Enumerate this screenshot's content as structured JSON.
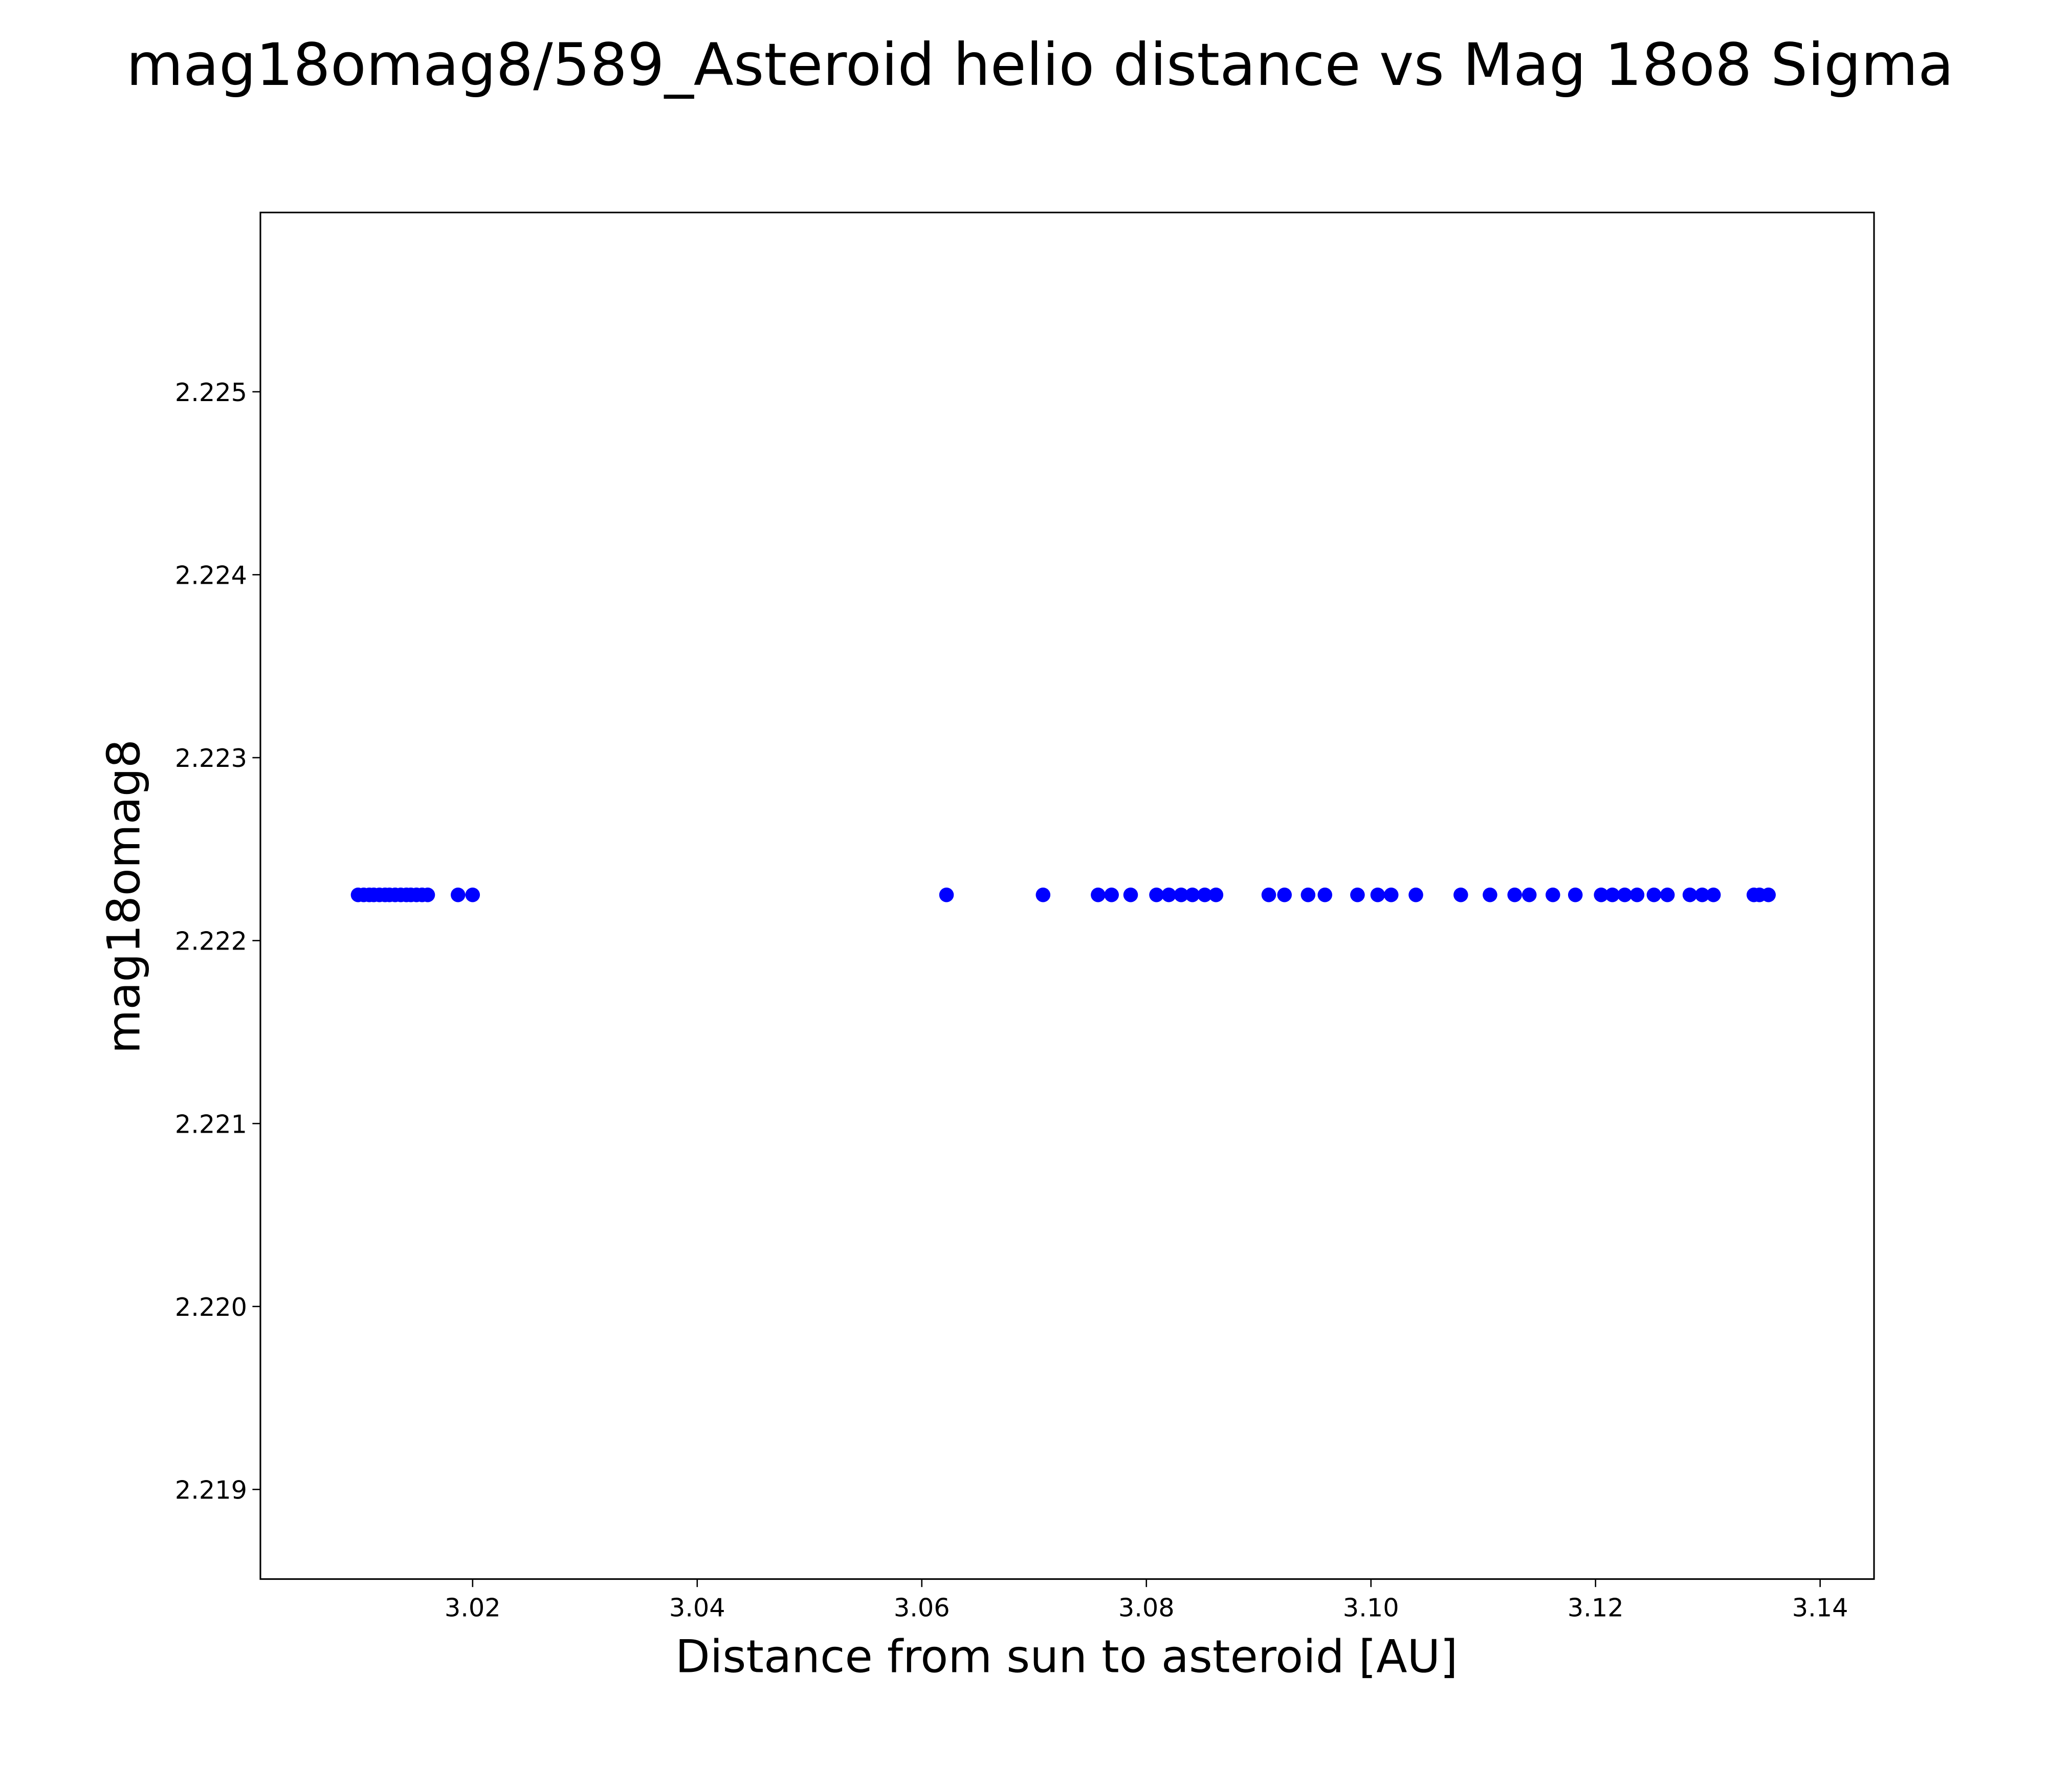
{
  "chart_data": {
    "type": "scatter",
    "title": "mag18omag8/589_Asteroid helio distance vs Mag 18o8 Sigma",
    "xlabel": "Distance from sun to asteroid [AU]",
    "ylabel": "mag18omag8",
    "xlim": [
      3.0011,
      3.1448
    ],
    "ylim": [
      2.21851,
      2.22598
    ],
    "xticks": [
      "3.02",
      "3.04",
      "3.06",
      "3.08",
      "3.10",
      "3.12",
      "3.14"
    ],
    "xtick_values": [
      3.02,
      3.04,
      3.06,
      3.08,
      3.1,
      3.12,
      3.14
    ],
    "yticks": [
      "2.219",
      "2.220",
      "2.221",
      "2.222",
      "2.223",
      "2.224",
      "2.225"
    ],
    "ytick_values": [
      2.219,
      2.22,
      2.221,
      2.222,
      2.223,
      2.224,
      2.225
    ],
    "grid": false,
    "color": "#0000ff",
    "series": [
      {
        "name": "mag18omag8",
        "y_constant": 2.22225,
        "x": [
          3.0098,
          3.0103,
          3.0108,
          3.0112,
          3.0117,
          3.0122,
          3.0126,
          3.0131,
          3.0136,
          3.0141,
          3.0145,
          3.015,
          3.0155,
          3.016,
          3.0187,
          3.02,
          3.0622,
          3.0708,
          3.0757,
          3.0769,
          3.0786,
          3.0809,
          3.082,
          3.0831,
          3.0841,
          3.0852,
          3.0862,
          3.0909,
          3.0923,
          3.0944,
          3.0959,
          3.0988,
          3.1006,
          3.1018,
          3.104,
          3.108,
          3.1106,
          3.1128,
          3.1141,
          3.1162,
          3.1182,
          3.1205,
          3.1215,
          3.1226,
          3.1237,
          3.1252,
          3.1264,
          3.1284,
          3.1295,
          3.1305,
          3.1341,
          3.1346,
          3.1354
        ]
      }
    ]
  }
}
